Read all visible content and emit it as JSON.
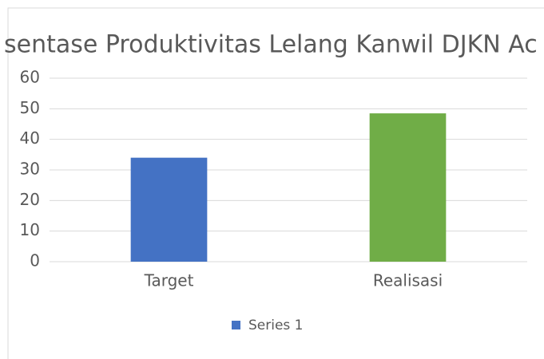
{
  "chart_data": {
    "type": "bar",
    "title": "sentase Produktivitas Lelang Kanwil DJKN Ac",
    "categories": [
      "Target",
      "Realisasi"
    ],
    "series": [
      {
        "name": "Series 1",
        "color": "#4472c4",
        "values": [
          34,
          48.5
        ]
      }
    ],
    "point_colors": [
      "#4472c4",
      "#70ad47"
    ],
    "ylim": [
      0,
      60
    ],
    "yticks": [
      0,
      10,
      20,
      30,
      40,
      50,
      60
    ],
    "grid": true,
    "legend": "bottom"
  }
}
